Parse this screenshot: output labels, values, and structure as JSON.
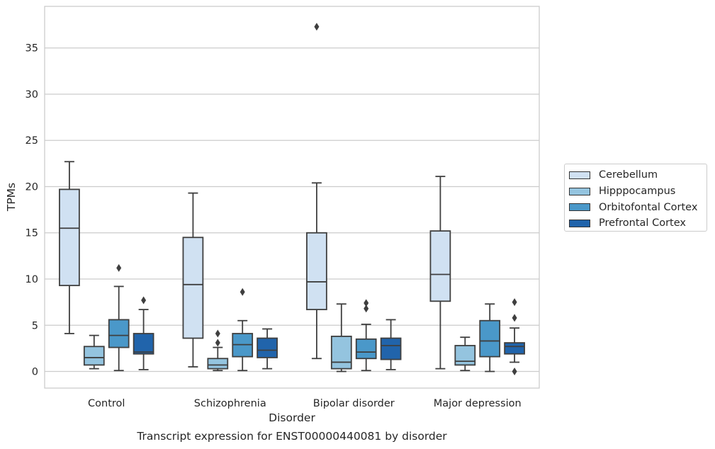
{
  "caption": "Transcript expression for ENST00000440081 by disorder",
  "chart_data": {
    "type": "boxplot",
    "title": "",
    "xlabel": "Disorder",
    "ylabel": "TPMs",
    "ylim": [
      -1.8,
      39.5
    ],
    "yticks": [
      0,
      5,
      10,
      15,
      20,
      25,
      30,
      35
    ],
    "grid": "horizontal",
    "legend_position": "right",
    "categories": [
      "Control",
      "Schizophrenia",
      "Bipolar disorder",
      "Major depression"
    ],
    "series": [
      {
        "name": "Cerebellum",
        "color": "#d0e1f2",
        "boxes": [
          {
            "whislo": 4.1,
            "q1": 9.3,
            "med": 15.5,
            "q3": 19.7,
            "whishi": 22.7,
            "fliers": []
          },
          {
            "whislo": 0.5,
            "q1": 3.6,
            "med": 9.4,
            "q3": 14.5,
            "whishi": 19.3,
            "fliers": []
          },
          {
            "whislo": 1.4,
            "q1": 6.7,
            "med": 9.7,
            "q3": 15.0,
            "whishi": 20.4,
            "fliers": [
              37.3
            ]
          },
          {
            "whislo": 0.3,
            "q1": 7.6,
            "med": 10.5,
            "q3": 15.2,
            "whishi": 21.1,
            "fliers": []
          }
        ]
      },
      {
        "name": "Hipppocampus",
        "color": "#94c4df",
        "boxes": [
          {
            "whislo": 0.3,
            "q1": 0.7,
            "med": 1.5,
            "q3": 2.7,
            "whishi": 3.9,
            "fliers": []
          },
          {
            "whislo": 0.1,
            "q1": 0.3,
            "med": 0.7,
            "q3": 1.4,
            "whishi": 2.6,
            "fliers": [
              3.1,
              4.1
            ]
          },
          {
            "whislo": 0.0,
            "q1": 0.3,
            "med": 1.0,
            "q3": 3.8,
            "whishi": 7.3,
            "fliers": []
          },
          {
            "whislo": 0.1,
            "q1": 0.7,
            "med": 1.1,
            "q3": 2.8,
            "whishi": 3.7,
            "fliers": []
          }
        ]
      },
      {
        "name": "Orbitofontal Cortex",
        "color": "#4a98c9",
        "boxes": [
          {
            "whislo": 0.1,
            "q1": 2.6,
            "med": 3.9,
            "q3": 5.6,
            "whishi": 9.2,
            "fliers": [
              11.2
            ]
          },
          {
            "whislo": 0.1,
            "q1": 1.6,
            "med": 2.9,
            "q3": 4.1,
            "whishi": 5.5,
            "fliers": [
              8.6
            ]
          },
          {
            "whislo": 0.1,
            "q1": 1.4,
            "med": 2.1,
            "q3": 3.5,
            "whishi": 5.1,
            "fliers": [
              6.8,
              7.4
            ]
          },
          {
            "whislo": 0.0,
            "q1": 1.6,
            "med": 3.3,
            "q3": 5.5,
            "whishi": 7.3,
            "fliers": []
          }
        ]
      },
      {
        "name": "Prefrontal Cortex",
        "color": "#2164ab",
        "boxes": [
          {
            "whislo": 0.2,
            "q1": 1.9,
            "med": 2.1,
            "q3": 4.1,
            "whishi": 6.7,
            "fliers": [
              7.7
            ]
          },
          {
            "whislo": 0.3,
            "q1": 1.5,
            "med": 2.3,
            "q3": 3.6,
            "whishi": 4.6,
            "fliers": []
          },
          {
            "whislo": 0.2,
            "q1": 1.3,
            "med": 2.8,
            "q3": 3.6,
            "whishi": 5.6,
            "fliers": []
          },
          {
            "whislo": 1.0,
            "q1": 1.9,
            "med": 2.7,
            "q3": 3.1,
            "whishi": 4.7,
            "fliers": [
              0.0,
              5.8,
              7.5
            ]
          }
        ]
      }
    ]
  }
}
